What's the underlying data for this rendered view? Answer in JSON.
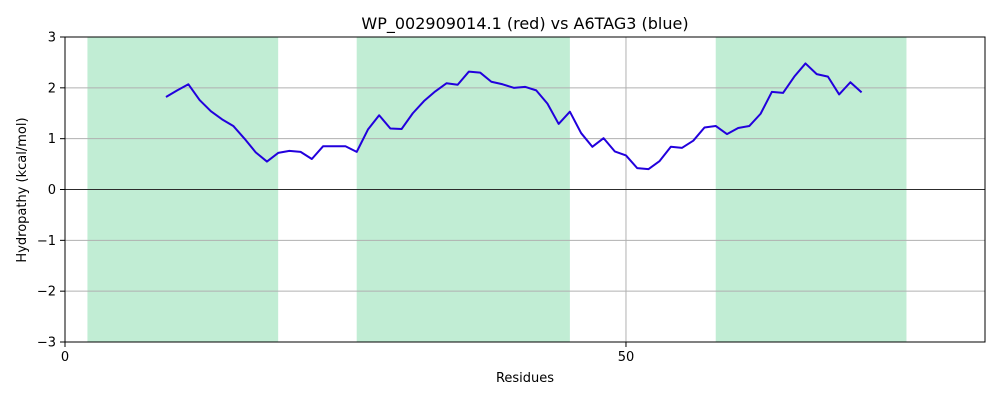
{
  "chart_data": {
    "type": "line",
    "title": "WP_002909014.1 (red) vs A6TAG3 (blue)",
    "xlabel": "Residues",
    "ylabel": "Hydropathy (kcal/mol)",
    "xlim": [
      0,
      82
    ],
    "ylim": [
      -3,
      3
    ],
    "xticks": [
      0,
      50
    ],
    "yticks": [
      -3,
      -2,
      -1,
      0,
      1,
      2,
      3
    ],
    "grid": true,
    "colors": {
      "shade": "#c1edd4",
      "line": "#2200dd",
      "grid": "#b0b0b0",
      "zero_line": "#000000"
    },
    "shaded_regions": [
      [
        2,
        19
      ],
      [
        26,
        45
      ],
      [
        58,
        75
      ]
    ],
    "series": [
      {
        "x": [
          9,
          10,
          11,
          12,
          13,
          14,
          15,
          16,
          17,
          18,
          19,
          20,
          21,
          22,
          23,
          24,
          25,
          26,
          27,
          28,
          29,
          30,
          31,
          32,
          33,
          34,
          35,
          36,
          37,
          38,
          39,
          40,
          41,
          42,
          43,
          44,
          45,
          46,
          47,
          48,
          49,
          50,
          51,
          52,
          53,
          54,
          55,
          56,
          57,
          58,
          59,
          60,
          61,
          62,
          63,
          64,
          65,
          66,
          67,
          68,
          69,
          70,
          71
        ],
        "values": [
          1.82,
          1.95,
          2.07,
          1.76,
          1.54,
          1.38,
          1.25,
          1.0,
          0.73,
          0.55,
          0.72,
          0.76,
          0.74,
          0.6,
          0.85,
          0.85,
          0.85,
          0.74,
          1.18,
          1.46,
          1.2,
          1.19,
          1.5,
          1.74,
          1.93,
          2.09,
          2.06,
          2.32,
          2.3,
          2.12,
          2.07,
          2.0,
          2.02,
          1.95,
          1.69,
          1.29,
          1.53,
          1.11,
          0.84,
          1.01,
          0.75,
          0.67,
          0.42,
          0.4,
          0.56,
          0.84,
          0.82,
          0.96,
          1.22,
          1.25,
          1.09,
          1.21,
          1.25,
          1.49,
          1.92,
          1.9,
          2.22,
          2.48,
          2.27,
          2.22,
          1.87,
          2.11,
          1.91
        ]
      }
    ]
  }
}
